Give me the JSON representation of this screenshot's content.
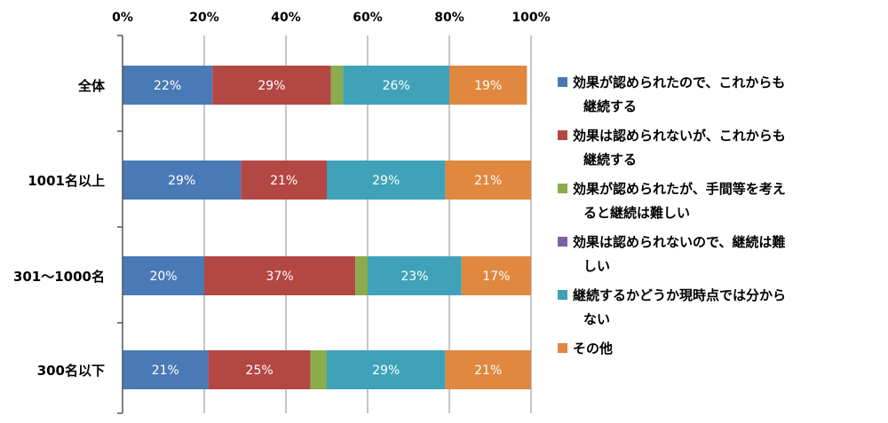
{
  "chart_data": {
    "type": "bar",
    "orientation": "horizontal",
    "stacked": true,
    "percent": true,
    "xlim": [
      0,
      100
    ],
    "xticks": [
      "0%",
      "20%",
      "40%",
      "60%",
      "80%",
      "100%"
    ],
    "categories": [
      "全体",
      "1001名以上",
      "301～1000名",
      "300名以下"
    ],
    "series": [
      {
        "name": "効果が認められたので、これからも継続する",
        "color": "#4a7ab5",
        "values": [
          22,
          29,
          20,
          21
        ],
        "labels": [
          "22%",
          "29%",
          "20%",
          "21%"
        ]
      },
      {
        "name": "効果は認められないが、これからも継続する",
        "color": "#b34744",
        "values": [
          29,
          21,
          37,
          25
        ],
        "labels": [
          "29%",
          "21%",
          "37%",
          "25%"
        ]
      },
      {
        "name": "効果が認められたが、手間等を考えると継続は難しい",
        "color": "#8bab4c",
        "values": [
          3,
          0,
          3,
          4
        ],
        "labels": [
          "",
          "",
          "",
          ""
        ]
      },
      {
        "name": "効果は認められないので、継続は難しい",
        "color": "#7c62a0",
        "values": [
          0,
          0,
          0,
          0
        ],
        "labels": [
          "",
          "",
          "",
          ""
        ]
      },
      {
        "name": "継続するかどうか現時点では分からない",
        "color": "#3fa2b9",
        "values": [
          26,
          29,
          23,
          29
        ],
        "labels": [
          "26%",
          "29%",
          "23%",
          "29%"
        ]
      },
      {
        "name": "その他",
        "color": "#e0883f",
        "values": [
          19,
          21,
          17,
          21
        ],
        "labels": [
          "19%",
          "21%",
          "17%",
          "21%"
        ]
      }
    ],
    "legend_position": "right",
    "grid": true
  }
}
